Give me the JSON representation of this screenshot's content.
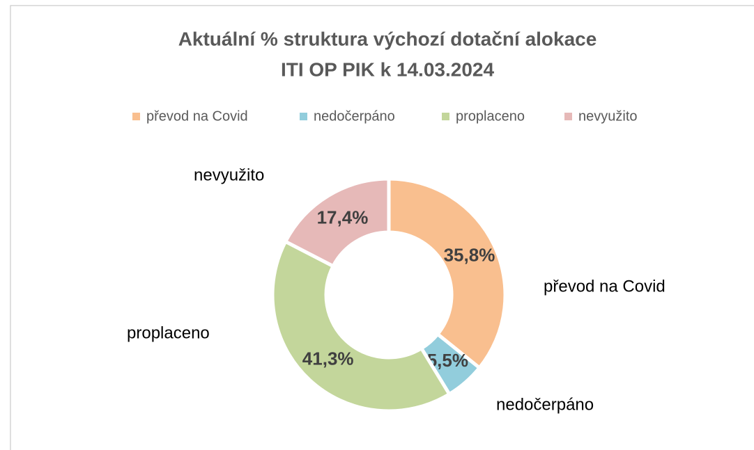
{
  "chart_data": {
    "type": "donut",
    "title": [
      "Aktuální % struktura výchozí dotační alokace",
      "ITI OP PIK k 14.03.2024"
    ],
    "categories": [
      "převod na Covid",
      "nedočerpáno",
      "proplaceno",
      "nevyužito"
    ],
    "outer_labels": [
      "převod na  Covid",
      "nedočerpáno",
      "proplaceno",
      "nevyužito"
    ],
    "values": [
      35.8,
      5.5,
      41.3,
      17.4
    ],
    "value_labels": [
      "35,8%",
      "5,5%",
      "41,3%",
      "17,4%"
    ],
    "colors": [
      "#f9bf8f",
      "#92cddc",
      "#c3d69b",
      "#e6b9b8"
    ],
    "legend": "top"
  }
}
